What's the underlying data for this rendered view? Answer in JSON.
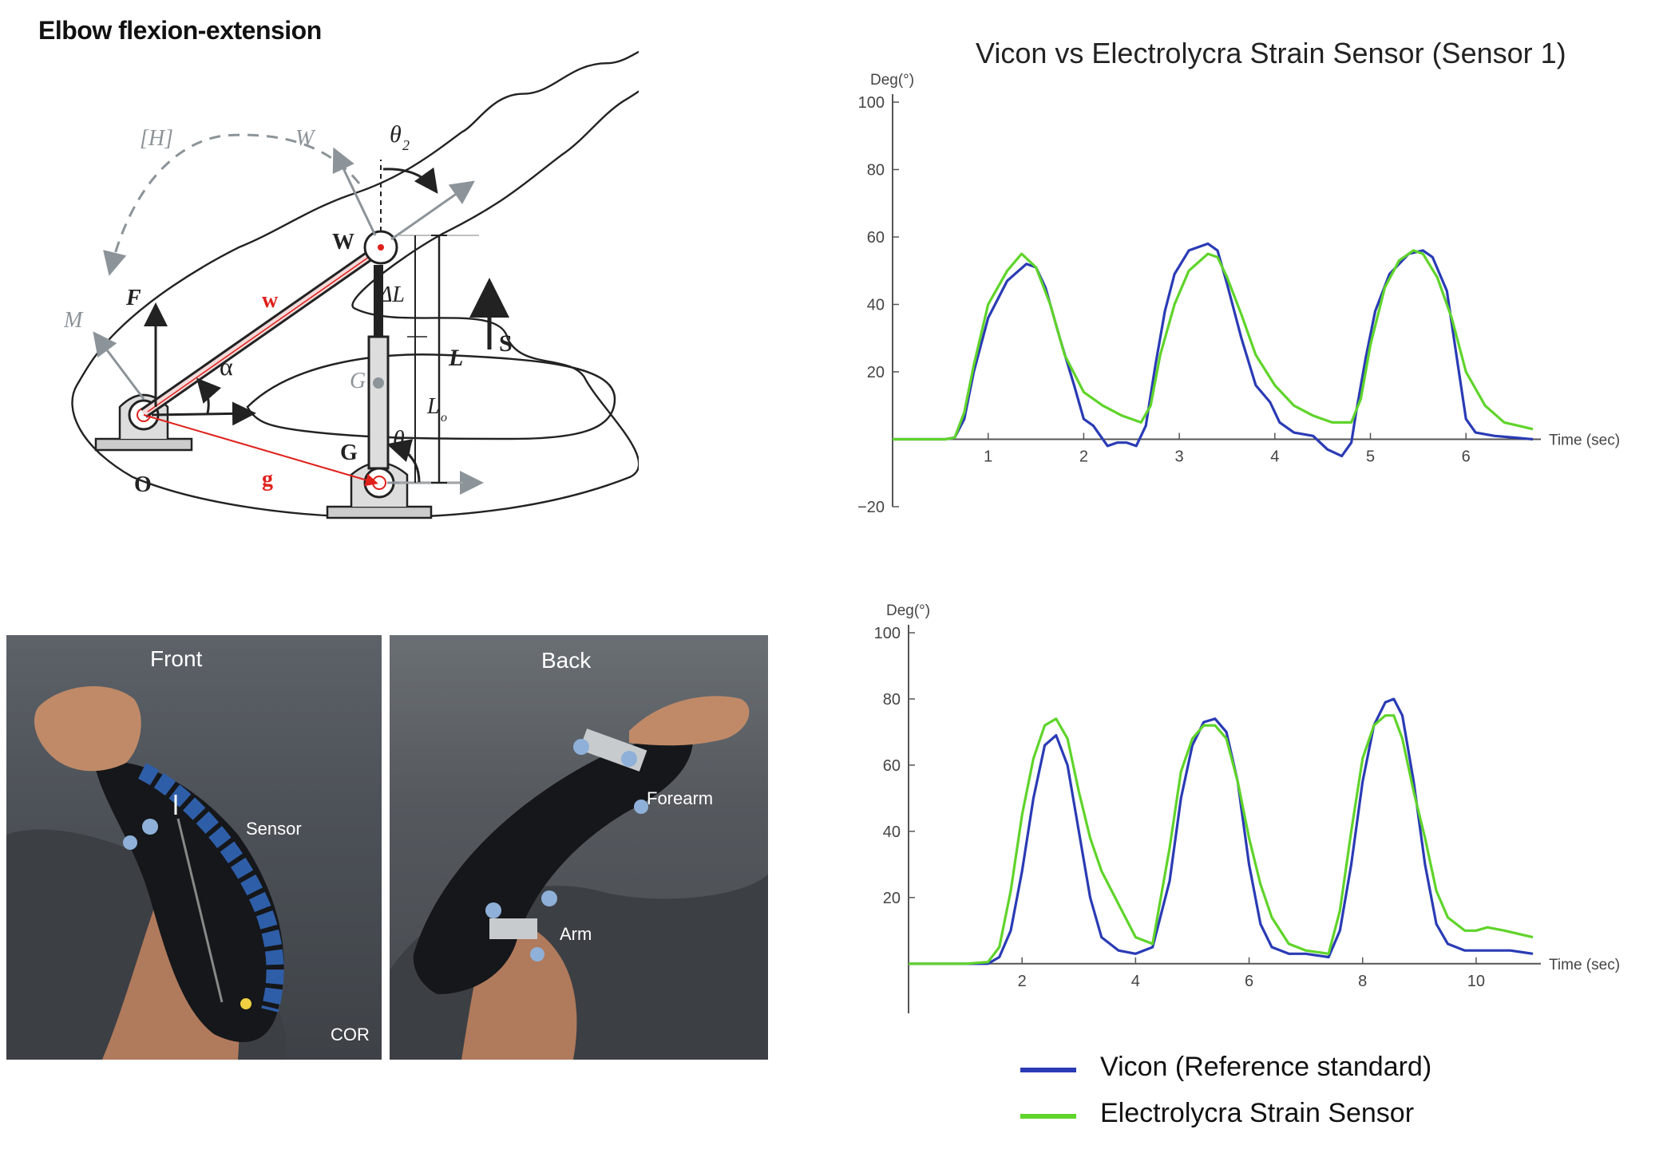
{
  "figure_title": "Elbow flexion-extension",
  "diagram": {
    "labels": {
      "H": "[H]",
      "W_vec": "W",
      "theta2": "θ",
      "theta2_sub": "2",
      "W_point": "W",
      "w_vec": "w",
      "F": "F",
      "M": "M",
      "alpha": "α",
      "O": "O",
      "g_vec": "g",
      "G_upper": "G",
      "G_lower": "G",
      "theta1": "θ",
      "theta1_sub": "1",
      "delta_L": "ΔL",
      "L": "L",
      "L_o": "L",
      "L_o_sub": "o",
      "S": "S"
    },
    "colors": {
      "outline": "#222222",
      "gray": "#8c9499",
      "red": "#e0201b"
    }
  },
  "photos": {
    "front_label": "Front",
    "back_label": "Back",
    "sensor_label": "Sensor",
    "cor_label": "COR",
    "forearm_label": "Forearm",
    "arm_label": "Arm"
  },
  "chart_title": "Vicon vs Electrolycra Strain Sensor (Sensor 1)",
  "legend": {
    "vicon": "Vicon (Reference standard)",
    "sensor": "Electrolycra Strain Sensor"
  },
  "colors": {
    "vicon": "#2a3bb5",
    "sensor": "#5fd42a",
    "axis": "#555555"
  },
  "chart_data": [
    {
      "type": "line",
      "title": "Vicon vs Electrolycra Strain Sensor (Sensor 1)",
      "ylabel": "Deg(°)",
      "xlabel": "Time (sec)",
      "xlim": [
        0,
        6.7
      ],
      "ylim": [
        -20,
        100
      ],
      "xticks": [
        1,
        2,
        3,
        4,
        5,
        6
      ],
      "yticks": [
        -20,
        20,
        40,
        60,
        80,
        100
      ],
      "grid": false,
      "series": [
        {
          "name": "Vicon (Reference standard)",
          "color": "#2a3bb5",
          "x": [
            0,
            0.3,
            0.55,
            0.65,
            0.75,
            0.85,
            1.0,
            1.2,
            1.4,
            1.5,
            1.6,
            1.75,
            1.9,
            2.0,
            2.1,
            2.25,
            2.35,
            2.45,
            2.55,
            2.65,
            2.75,
            2.85,
            2.95,
            3.1,
            3.3,
            3.4,
            3.5,
            3.65,
            3.8,
            3.95,
            4.05,
            4.2,
            4.4,
            4.55,
            4.7,
            4.8,
            4.85,
            4.95,
            5.05,
            5.2,
            5.4,
            5.55,
            5.65,
            5.8,
            5.9,
            6.0,
            6.1,
            6.3,
            6.5,
            6.7
          ],
          "y": [
            0,
            0,
            0,
            0.5,
            6,
            20,
            36,
            47,
            52,
            51,
            45,
            30,
            16,
            6,
            4,
            -2,
            -1,
            -1,
            -2,
            4,
            22,
            38,
            49,
            56,
            58,
            56,
            46,
            30,
            16,
            11,
            5,
            2,
            1,
            -3,
            -5,
            -1,
            8,
            24,
            38,
            49,
            55,
            56,
            54,
            44,
            25,
            6,
            2,
            1,
            0.5,
            0
          ]
        },
        {
          "name": "Electrolycra Strain Sensor",
          "color": "#5fd42a",
          "x": [
            0,
            0.3,
            0.55,
            0.65,
            0.75,
            0.85,
            1.0,
            1.2,
            1.35,
            1.5,
            1.65,
            1.8,
            2.0,
            2.2,
            2.4,
            2.6,
            2.7,
            2.8,
            2.95,
            3.1,
            3.3,
            3.4,
            3.5,
            3.65,
            3.8,
            4.0,
            4.2,
            4.4,
            4.6,
            4.8,
            4.9,
            5.0,
            5.15,
            5.3,
            5.45,
            5.55,
            5.7,
            5.85,
            6.0,
            6.2,
            6.4,
            6.7
          ],
          "y": [
            0,
            0,
            0,
            0.5,
            8,
            22,
            40,
            50,
            55,
            51,
            40,
            25,
            14,
            10,
            7,
            5,
            10,
            25,
            40,
            50,
            55,
            54,
            48,
            37,
            25,
            16,
            10,
            7,
            5,
            5,
            12,
            28,
            45,
            53,
            56,
            55,
            48,
            36,
            20,
            10,
            5,
            3
          ]
        }
      ]
    },
    {
      "type": "line",
      "ylabel": "Deg(°)",
      "xlabel": "Time (sec)",
      "xlim": [
        0,
        11
      ],
      "ylim": [
        -15,
        100
      ],
      "xticks": [
        2,
        4,
        6,
        8,
        10
      ],
      "yticks": [
        20,
        40,
        60,
        80,
        100
      ],
      "grid": false,
      "series": [
        {
          "name": "Vicon (Reference standard)",
          "color": "#2a3bb5",
          "x": [
            0,
            1.0,
            1.4,
            1.6,
            1.8,
            2.0,
            2.2,
            2.4,
            2.6,
            2.8,
            3.0,
            3.2,
            3.4,
            3.7,
            4.0,
            4.3,
            4.6,
            4.8,
            5.0,
            5.2,
            5.4,
            5.6,
            5.8,
            6.0,
            6.2,
            6.4,
            6.7,
            7.0,
            7.4,
            7.6,
            7.8,
            8.0,
            8.2,
            8.4,
            8.55,
            8.7,
            8.9,
            9.1,
            9.3,
            9.5,
            9.8,
            10.2,
            10.6,
            11.0
          ],
          "y": [
            0,
            0,
            0,
            2,
            10,
            28,
            50,
            66,
            69,
            60,
            40,
            20,
            8,
            4,
            3,
            5,
            25,
            50,
            66,
            73,
            74,
            70,
            55,
            30,
            12,
            5,
            3,
            3,
            2,
            10,
            30,
            55,
            72,
            79,
            80,
            75,
            55,
            30,
            12,
            6,
            4,
            4,
            4,
            3
          ]
        },
        {
          "name": "Electrolycra Strain Sensor",
          "color": "#5fd42a",
          "x": [
            0,
            1.0,
            1.4,
            1.6,
            1.8,
            2.0,
            2.2,
            2.4,
            2.6,
            2.8,
            3.0,
            3.2,
            3.4,
            3.7,
            4.0,
            4.3,
            4.6,
            4.8,
            5.0,
            5.2,
            5.4,
            5.6,
            5.8,
            6.0,
            6.2,
            6.4,
            6.7,
            7.0,
            7.4,
            7.6,
            7.8,
            8.0,
            8.2,
            8.4,
            8.55,
            8.7,
            8.9,
            9.1,
            9.3,
            9.5,
            9.8,
            10.0,
            10.2,
            10.5,
            11.0
          ],
          "y": [
            0,
            0,
            0.5,
            5,
            22,
            45,
            62,
            72,
            74,
            68,
            52,
            38,
            28,
            18,
            8,
            6,
            35,
            58,
            68,
            72,
            72,
            68,
            55,
            38,
            24,
            14,
            6,
            4,
            3,
            16,
            40,
            62,
            72,
            75,
            75,
            68,
            52,
            38,
            22,
            14,
            10,
            10,
            11,
            10,
            8
          ]
        }
      ]
    }
  ]
}
